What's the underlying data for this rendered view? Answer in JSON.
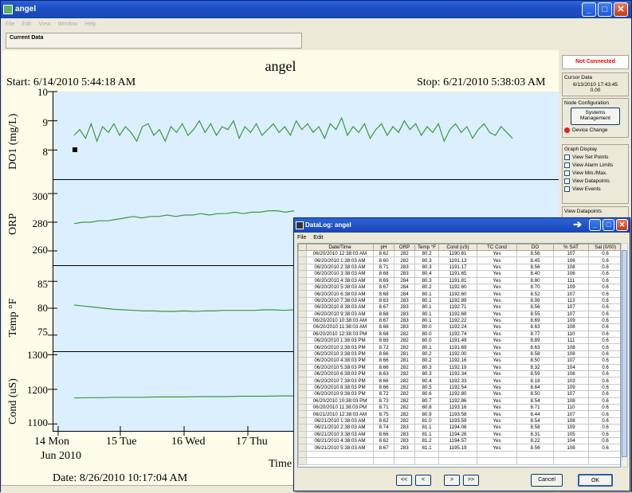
{
  "window": {
    "title": "angel",
    "menus": [
      "File",
      "Edit",
      "View",
      "Window",
      "Help"
    ]
  },
  "current_data": {
    "label": "Current Data"
  },
  "chart": {
    "title": "angel",
    "start": "Start: 6/14/2010 5:44:18  AM",
    "stop": "Stop: 6/21/2010 5:38:03  AM",
    "date": "Date: 8/26/2010 10:17:04  AM",
    "x_label": "Time",
    "x_ticks": [
      "14 Mon",
      "15 Tue",
      "16 Wed",
      "17 Thu"
    ],
    "x_month": "Jun 2010",
    "line_color": "#3a9a3a"
  },
  "chart_data": [
    {
      "type": "line",
      "ylabel": "DO1 (mg/L)",
      "ylim": [
        7,
        10
      ],
      "yticks": [
        "10",
        "9",
        "8"
      ],
      "series": [
        {
          "values": [
            8.5,
            8.7,
            8.4,
            8.9,
            8.3,
            8.8,
            8.6,
            8.9,
            8.5,
            8.8,
            8.6,
            8.3,
            8.8,
            8.9,
            8.5,
            8.7,
            8.3,
            8.8,
            8.6,
            8.9,
            8.5,
            8.7,
            9.0,
            8.6,
            8.9,
            8.5,
            8.8,
            8.7,
            9.0,
            8.4,
            8.8,
            8.6,
            8.9,
            8.5,
            8.7,
            8.9,
            8.6,
            8.8,
            8.5,
            9.0,
            8.7,
            8.9,
            8.6,
            8.8,
            8.4,
            8.9,
            8.7,
            9.1,
            8.5,
            8.8,
            8.6,
            8.9,
            8.4,
            8.7,
            8.9,
            8.5,
            8.8,
            8.6,
            9.0,
            8.7,
            8.9,
            8.5,
            8.8,
            8.6,
            8.9,
            8.3,
            8.7,
            8.9,
            8.6,
            8.8,
            8.4,
            8.7,
            8.9,
            8.6,
            8.5,
            8.8,
            8.6,
            8.4
          ]
        }
      ]
    },
    {
      "type": "line",
      "ylabel": "ORP",
      "ylim": [
        250,
        310
      ],
      "yticks": [
        "300",
        "280",
        "260"
      ],
      "series": [
        {
          "values": [
            279,
            280,
            280,
            281,
            281,
            282,
            283,
            284,
            283,
            284,
            284,
            285,
            284,
            285,
            285,
            286,
            285,
            286,
            286,
            287,
            286,
            287,
            287,
            288,
            288,
            287,
            288
          ]
        }
      ]
    },
    {
      "type": "line",
      "ylabel": "Temp °F",
      "ylim": [
        72,
        88
      ],
      "yticks": [
        "85",
        "80",
        "75"
      ],
      "series": [
        {
          "values": [
            80.6,
            80.4,
            80.2,
            80.0,
            79.8,
            79.7,
            79.6,
            79.5,
            79.5,
            79.4,
            79.4,
            79.5,
            79.4,
            79.5,
            79.5,
            79.6,
            79.6,
            79.6,
            79.6,
            79.7,
            79.7,
            79.6,
            79.7
          ]
        }
      ]
    },
    {
      "type": "line",
      "ylabel": "Cond (uS)",
      "ylim": [
        1080,
        1310
      ],
      "yticks": [
        "1300",
        "1200",
        "1100"
      ],
      "series": [
        {
          "values": [
            1175,
            1176,
            1176,
            1177,
            1177,
            1177,
            1178,
            1178,
            1178,
            1179,
            1179,
            1179,
            1180,
            1180,
            1180,
            1181,
            1181
          ]
        }
      ]
    }
  ],
  "right_panel": {
    "status": "Not Connected",
    "cursor_title": "Cursor Data",
    "cursor_time": "6/13/2010 17:43:45",
    "cursor_value": "0.00",
    "node_title": "Node Configuration",
    "sys_button": "Systems Management",
    "device_change": "Device Change",
    "graph_title": "Graph Display",
    "checks": [
      "View Set Points",
      "View Alarm Limits",
      "View Min./Max.",
      "View Datapoints",
      "View Events"
    ],
    "view_dp": "View Datapoints"
  },
  "dialog": {
    "title": "DataLog: angel",
    "menus": [
      "File",
      "Edit"
    ],
    "columns": [
      "Date/Time",
      "pH",
      "ORP",
      "Temp °F",
      "Cond (uS)",
      "TC Cond",
      "DO",
      "% SAT",
      "Sal (0/00)"
    ],
    "rows": [
      [
        "06/20/2010 12:38:03 AM",
        "8.62",
        "282",
        "80.2",
        "1190.81",
        "Yes",
        "8.56",
        "107",
        "0.6"
      ],
      [
        "06/20/2010 1:38:03 AM",
        "8.60",
        "282",
        "80.3",
        "1191.13",
        "Yes",
        "8.45",
        "106",
        "0.6"
      ],
      [
        "06/20/2010 2:38:03 AM",
        "8.71",
        "283",
        "80.3",
        "1191.17",
        "Yes",
        "8.56",
        "108",
        "0.6"
      ],
      [
        "06/20/2010 3:38:03 AM",
        "8.68",
        "283",
        "80.4",
        "1191.65",
        "Yes",
        "8.40",
        "106",
        "0.6"
      ],
      [
        "06/20/2010 4:38:03 AM",
        "8.69",
        "284",
        "80.3",
        "1191.81",
        "Yes",
        "8.80",
        "111",
        "0.6"
      ],
      [
        "06/20/2010 5:38:03 AM",
        "8.67",
        "284",
        "80.2",
        "1192.60",
        "Yes",
        "8.70",
        "109",
        "0.6"
      ],
      [
        "06/20/2010 6:38:03 AM",
        "8.68",
        "284",
        "80.1",
        "1192.60",
        "Yes",
        "8.52",
        "107",
        "0.6"
      ],
      [
        "06/20/2010 7:38:03 AM",
        "8.63",
        "283",
        "80.1",
        "1192.89",
        "Yes",
        "8.99",
        "113",
        "0.6"
      ],
      [
        "06/20/2010 8:38:03 AM",
        "8.67",
        "283",
        "80.1",
        "1192.71",
        "Yes",
        "8.56",
        "107",
        "0.6"
      ],
      [
        "06/20/2010 9:38:03 AM",
        "8.68",
        "283",
        "80.1",
        "1192.68",
        "Yes",
        "8.55",
        "107",
        "0.6"
      ],
      [
        "06/20/2010 10:38:03 AM",
        "8.67",
        "283",
        "80.1",
        "1192.22",
        "Yes",
        "8.69",
        "109",
        "0.6"
      ],
      [
        "06/20/2010 11:38:03 AM",
        "8.68",
        "283",
        "80.0",
        "1192.24",
        "Yes",
        "8.63",
        "108",
        "0.6"
      ],
      [
        "06/20/2010 12:38:03 PM",
        "8.68",
        "282",
        "80.0",
        "1192.74",
        "Yes",
        "8.77",
        "110",
        "0.6"
      ],
      [
        "06/20/2010 1:38:03 PM",
        "8.69",
        "282",
        "80.0",
        "1191.49",
        "Yes",
        "8.89",
        "111",
        "0.6"
      ],
      [
        "06/20/2010 2:38:03 PM",
        "8.72",
        "282",
        "80.1",
        "1191.69",
        "Yes",
        "8.63",
        "108",
        "0.6"
      ],
      [
        "06/20/2010 3:38:03 PM",
        "8.66",
        "281",
        "80.2",
        "1192.00",
        "Yes",
        "8.58",
        "108",
        "0.6"
      ],
      [
        "06/20/2010 4:38:03 PM",
        "8.66",
        "281",
        "80.2",
        "1192.16",
        "Yes",
        "8.50",
        "107",
        "0.6"
      ],
      [
        "06/20/2010 5:38:03 PM",
        "8.66",
        "282",
        "80.3",
        "1192.19",
        "Yes",
        "8.32",
        "104",
        "0.6"
      ],
      [
        "06/20/2010 6:38:03 PM",
        "8.63",
        "282",
        "80.3",
        "1192.34",
        "Yes",
        "8.59",
        "108",
        "0.6"
      ],
      [
        "06/20/2010 7:38:03 PM",
        "8.66",
        "282",
        "80.4",
        "1192.33",
        "Yes",
        "8.18",
        "103",
        "0.6"
      ],
      [
        "06/20/2010 8:38:03 PM",
        "8.66",
        "282",
        "80.5",
        "1192.54",
        "Yes",
        "8.64",
        "109",
        "0.6"
      ],
      [
        "06/20/2010 9:38:03 PM",
        "8.72",
        "282",
        "80.6",
        "1192.80",
        "Yes",
        "8.50",
        "107",
        "0.6"
      ],
      [
        "06/20/2010 10:38:03 PM",
        "8.73",
        "282",
        "80.7",
        "1192.86",
        "Yes",
        "8.54",
        "108",
        "0.6"
      ],
      [
        "06/20/2010 11:38:03 PM",
        "8.71",
        "282",
        "80.8",
        "1193.16",
        "Yes",
        "8.71",
        "110",
        "0.6"
      ],
      [
        "06/21/2010 12:38:03 AM",
        "8.75",
        "282",
        "80.9",
        "1193.58",
        "Yes",
        "8.44",
        "107",
        "0.6"
      ],
      [
        "06/21/2010 1:38:03 AM",
        "8.62",
        "282",
        "81.0",
        "1193.59",
        "Yes",
        "8.54",
        "108",
        "0.6"
      ],
      [
        "06/21/2010 2:38:03 AM",
        "8.74",
        "283",
        "81.1",
        "1194.06",
        "Yes",
        "8.58",
        "109",
        "0.6"
      ],
      [
        "06/21/2010 3:38:03 AM",
        "8.66",
        "283",
        "81.1",
        "1194.26",
        "Yes",
        "8.31",
        "105",
        "0.6"
      ],
      [
        "06/21/2010 4:38:03 AM",
        "8.62",
        "283",
        "81.2",
        "1194.57",
        "Yes",
        "8.22",
        "104",
        "0.6"
      ],
      [
        "06/21/2010 5:38:03 AM",
        "8.67",
        "283",
        "81.1",
        "1195.19",
        "Yes",
        "8.56",
        "108",
        "0.6"
      ],
      [
        "",
        "",
        "",
        "",
        "",
        "",
        "",
        "",
        ""
      ],
      [
        "",
        "",
        "",
        "",
        "",
        "",
        "",
        "",
        ""
      ]
    ],
    "nav": [
      "<<",
      "<",
      ">",
      ">>"
    ],
    "cancel": "Cancel",
    "ok": "OK"
  }
}
